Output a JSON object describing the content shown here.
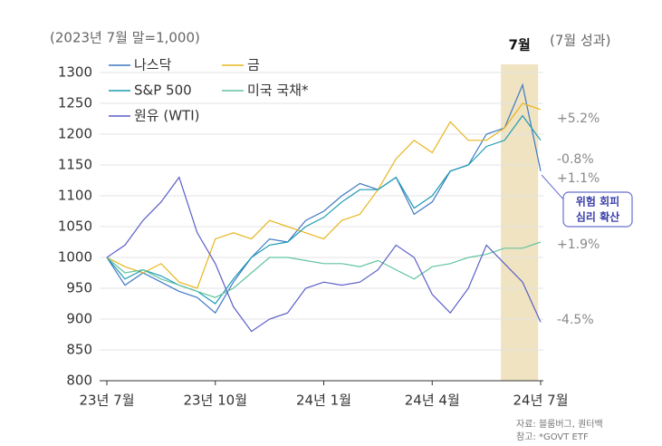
{
  "chart_data": {
    "type": "line",
    "subtitle": "(2023년 7월 말=1,000)",
    "right_header": "(7월 성과)",
    "highlight": {
      "label": "7월",
      "range": [
        10.9,
        11.93
      ],
      "color": "#efe3c2"
    },
    "x": [
      0,
      0.5,
      1,
      1.5,
      2,
      2.5,
      3,
      3.5,
      4,
      4.5,
      5,
      5.5,
      6,
      6.5,
      7,
      7.5,
      8,
      8.5,
      9,
      9.5,
      10,
      10.5,
      11,
      11.5,
      12
    ],
    "series": [
      {
        "name": "나스닥",
        "color": "#3f79c4",
        "values": [
          1000,
          955,
          975,
          960,
          945,
          935,
          910,
          960,
          1000,
          1030,
          1025,
          1060,
          1075,
          1100,
          1120,
          1110,
          1130,
          1070,
          1090,
          1140,
          1150,
          1200,
          1210,
          1280,
          1140
        ]
      },
      {
        "name": "금",
        "color": "#e8b51e",
        "values": [
          1000,
          985,
          975,
          990,
          960,
          950,
          1030,
          1040,
          1030,
          1060,
          1050,
          1040,
          1030,
          1060,
          1070,
          1110,
          1160,
          1190,
          1170,
          1220,
          1190,
          1190,
          1210,
          1250,
          1240
        ]
      },
      {
        "name": "S&P 500",
        "color": "#1e9bb2",
        "values": [
          1000,
          965,
          980,
          970,
          955,
          945,
          925,
          965,
          1000,
          1020,
          1025,
          1050,
          1065,
          1090,
          1110,
          1110,
          1130,
          1080,
          1100,
          1140,
          1150,
          1180,
          1190,
          1230,
          1190
        ]
      },
      {
        "name": "미국 국채*",
        "color": "#62c49f",
        "values": [
          1000,
          975,
          980,
          965,
          955,
          945,
          935,
          950,
          975,
          1000,
          1000,
          995,
          990,
          990,
          985,
          995,
          980,
          965,
          985,
          990,
          1000,
          1005,
          1015,
          1015,
          1025
        ]
      },
      {
        "name": "원유 (WTI)",
        "color": "#5b5fc7",
        "values": [
          1000,
          1020,
          1060,
          1090,
          1130,
          1040,
          990,
          920,
          880,
          900,
          910,
          950,
          960,
          955,
          960,
          980,
          1020,
          1000,
          940,
          910,
          950,
          1020,
          990,
          960,
          895
        ]
      }
    ],
    "xlim": [
      0,
      12
    ],
    "xticks": [
      {
        "value": 0,
        "label": "23년 7월"
      },
      {
        "value": 3,
        "label": "23년 10월"
      },
      {
        "value": 6,
        "label": "24년 1월"
      },
      {
        "value": 9,
        "label": "24년 4월"
      },
      {
        "value": 12,
        "label": "24년 7월"
      }
    ],
    "ylim": [
      800,
      1300
    ],
    "yticks": [
      800,
      850,
      900,
      950,
      1000,
      1050,
      1100,
      1150,
      1200,
      1250,
      1300
    ],
    "grid": true,
    "annotations": [
      "+5.2%",
      "-0.8%",
      "+1.1%",
      "+1.9%",
      "-4.5%"
    ],
    "callout": [
      "위험 회피",
      "심리 확산"
    ],
    "source": [
      "자료: 블룸버그, 퀀터백",
      "참고: *GOVT ETF"
    ]
  }
}
